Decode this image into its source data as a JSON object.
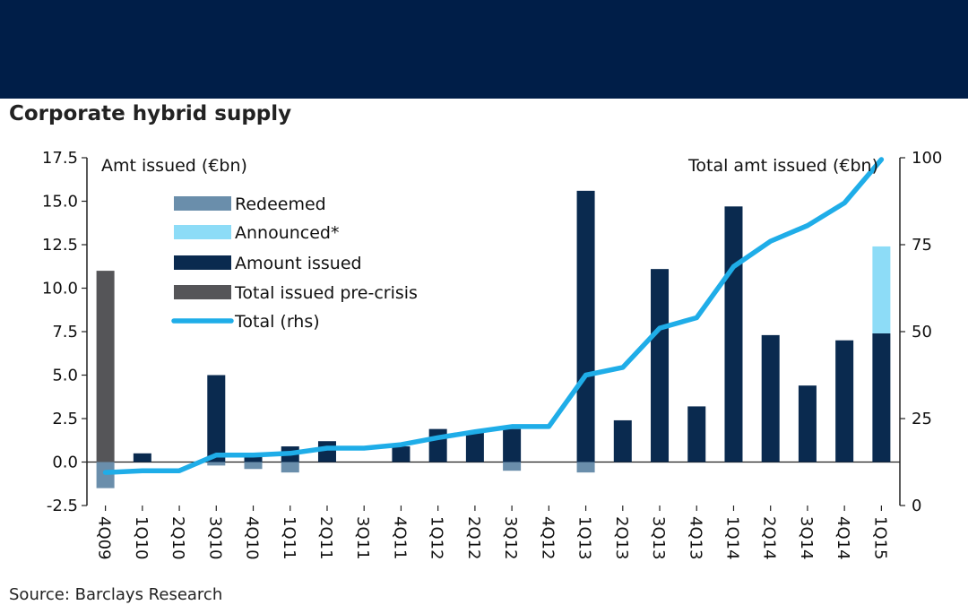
{
  "chart_data": {
    "type": "bar",
    "title": "Corporate hybrid supply",
    "source": "Source: Barclays Research",
    "left_axis_label": "Amt issued (€bn)",
    "right_axis_label": "Total amt issued (€bn)",
    "categories": [
      "4Q09",
      "1Q10",
      "2Q10",
      "3Q10",
      "4Q10",
      "1Q11",
      "2Q11",
      "3Q11",
      "4Q11",
      "1Q12",
      "2Q12",
      "3Q12",
      "4Q12",
      "1Q13",
      "2Q13",
      "3Q13",
      "4Q13",
      "1Q14",
      "2Q14",
      "3Q14",
      "4Q14",
      "1Q15"
    ],
    "ylim": [
      -2.5,
      17.5
    ],
    "y_ticks": [
      "17.5",
      "15.0",
      "12.5",
      "10.0",
      "7.5",
      "5.0",
      "2.5",
      "0.0",
      "-2.5"
    ],
    "y2lim": [
      0,
      100
    ],
    "y2_ticks": [
      "100",
      "75",
      "50",
      "25",
      "0"
    ],
    "series": [
      {
        "name": "Redeemed",
        "color": "#6a8eab",
        "axis": "left",
        "values": [
          -1.5,
          0,
          0,
          -0.2,
          -0.4,
          -0.6,
          0,
          0,
          0,
          0,
          0,
          -0.5,
          0,
          -0.6,
          0,
          0,
          0,
          0,
          0,
          0,
          0,
          0
        ]
      },
      {
        "name": "Announced*",
        "color": "#8ddcf7",
        "axis": "left",
        "stacked_on": "Amount issued",
        "values": [
          0,
          0,
          0,
          0,
          0,
          0,
          0,
          0,
          0,
          0,
          0,
          0,
          0,
          0,
          0,
          0,
          0,
          0,
          0,
          0,
          0,
          5.0
        ]
      },
      {
        "name": "Amount issued",
        "color": "#0a2a4f",
        "axis": "left",
        "values": [
          0,
          0.5,
          0,
          5.0,
          0.3,
          0.9,
          1.2,
          0,
          0.9,
          1.9,
          1.7,
          1.9,
          0,
          15.6,
          2.4,
          11.1,
          3.2,
          14.7,
          7.3,
          4.4,
          7.0,
          7.4
        ]
      },
      {
        "name": "Total issued pre-crisis",
        "color": "#555558",
        "axis": "left",
        "values": [
          11.0,
          0,
          0,
          0,
          0,
          0,
          0,
          0,
          0,
          0,
          0,
          0,
          0,
          0,
          0,
          0,
          0,
          0,
          0,
          0,
          0,
          0
        ]
      },
      {
        "name": "Total (rhs)",
        "color": "#1fade8",
        "axis": "right",
        "type": "line",
        "values": [
          9.5,
          10,
          10,
          14.5,
          14.5,
          15,
          16.5,
          16.5,
          17.5,
          19.5,
          21.2,
          22.7,
          22.7,
          37.5,
          39.7,
          51,
          54,
          68.7,
          76,
          80.5,
          87,
          99.5
        ]
      }
    ]
  }
}
